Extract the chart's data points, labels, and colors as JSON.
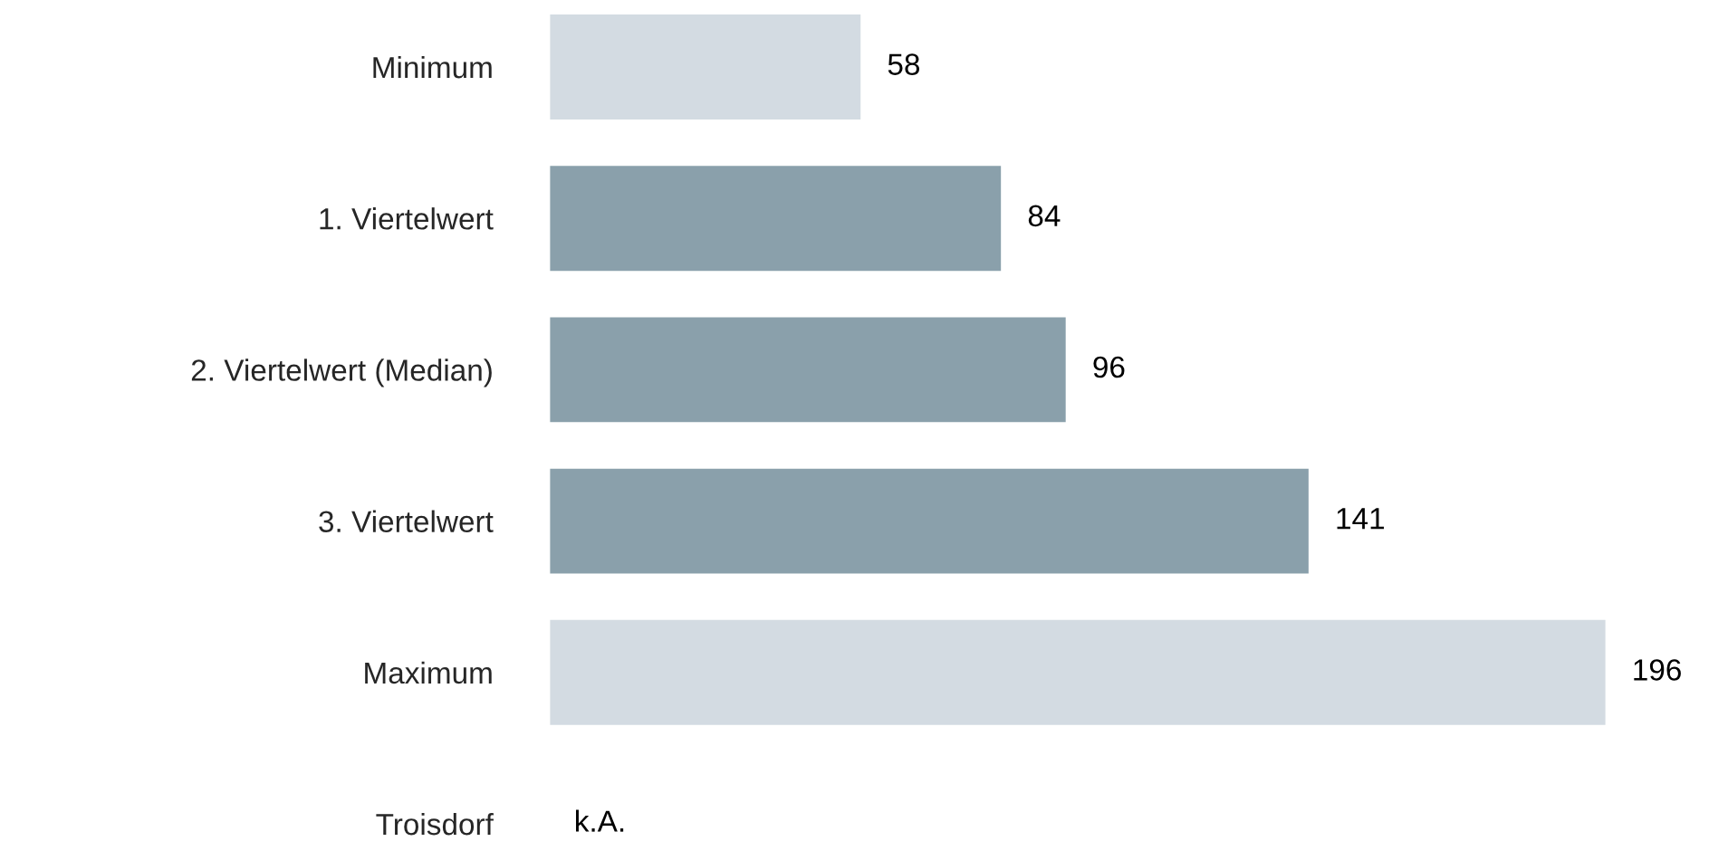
{
  "chart_data": {
    "type": "bar",
    "orientation": "horizontal",
    "categories": [
      "Minimum",
      "1. Viertelwert",
      "2. Viertelwert (Median)",
      "3. Viertelwert",
      "Maximum",
      "Troisdorf"
    ],
    "values": [
      58,
      84,
      96,
      141,
      196,
      null
    ],
    "colors": [
      "#d3dbe2",
      "#8aa0ab",
      "#8aa0ab",
      "#8aa0ab",
      "#d3dbe2",
      "#d3dbe2"
    ],
    "value_labels": [
      "58",
      "84",
      "96",
      "141",
      "196",
      "k.A."
    ],
    "grid": false,
    "legend": false
  }
}
